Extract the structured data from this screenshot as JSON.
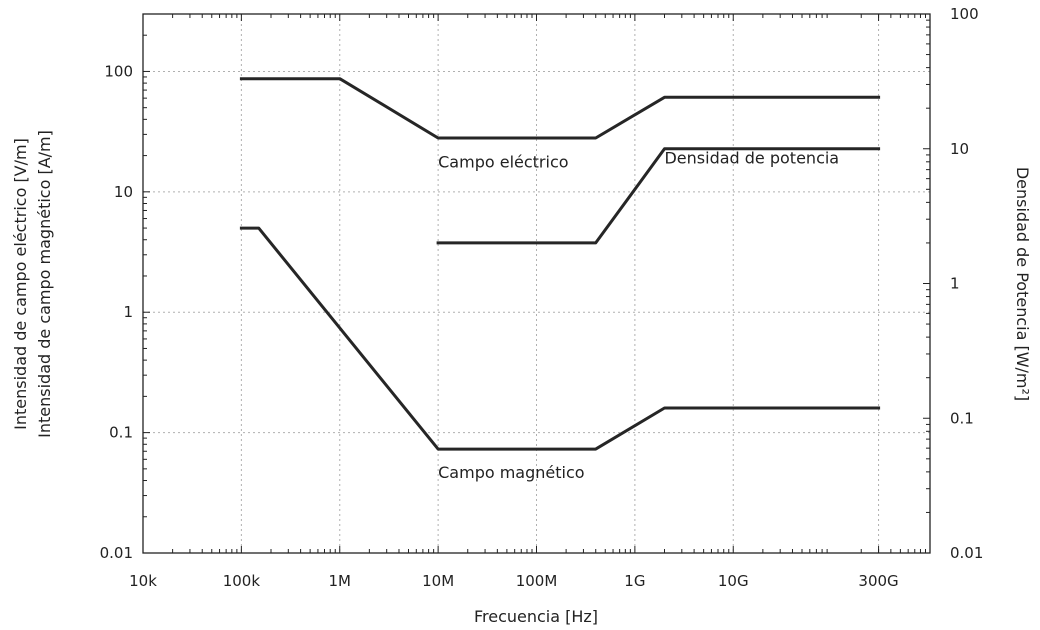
{
  "colors": {
    "line": "#262626",
    "grid": "#b0b0b0",
    "background": "#ffffff"
  },
  "chart_data": {
    "type": "line",
    "x_scale": "log",
    "xlim": [
      10000,
      1000000000000
    ],
    "y_scale": "log",
    "ylim": [
      0.01,
      300
    ],
    "y2_scale": "log",
    "y2lim": [
      0.01,
      100
    ],
    "grid": true,
    "legend": "none",
    "xlabel": "Frecuencia [Hz]",
    "ylabel_lines": [
      "Intensidad de campo eléctrico [V/m]",
      "Intensidad de campo magnético [A/m]"
    ],
    "y2label": "Densidad de Potencia [W/m²]",
    "x_ticks": [
      {
        "value": 10000,
        "label": "10k"
      },
      {
        "value": 100000,
        "label": "100k"
      },
      {
        "value": 1000000,
        "label": "1M"
      },
      {
        "value": 10000000,
        "label": "10M"
      },
      {
        "value": 100000000,
        "label": "100M"
      },
      {
        "value": 1000000000,
        "label": "1G"
      },
      {
        "value": 10000000000,
        "label": "10G"
      },
      {
        "value": 300000000000,
        "label": "300G"
      }
    ],
    "y_ticks": [
      {
        "value": 0.01,
        "label": "0.01"
      },
      {
        "value": 0.1,
        "label": "0.1"
      },
      {
        "value": 1,
        "label": "1"
      },
      {
        "value": 10,
        "label": "10"
      },
      {
        "value": 100,
        "label": "100"
      }
    ],
    "y2_ticks": [
      {
        "value": 0.01,
        "label": "0.01"
      },
      {
        "value": 0.1,
        "label": "0.1"
      },
      {
        "value": 1,
        "label": "1"
      },
      {
        "value": 10,
        "label": "10"
      },
      {
        "value": 100,
        "label": "100"
      }
    ],
    "series": [
      {
        "axis": "left",
        "points": [
          [
            100000,
            87
          ],
          [
            1000000,
            87
          ],
          [
            10000000,
            28
          ],
          [
            400000000,
            28
          ],
          [
            2000000000,
            61
          ],
          [
            300000000000,
            61
          ]
        ]
      },
      {
        "axis": "left",
        "points": [
          [
            100000,
            5
          ],
          [
            150000,
            5
          ],
          [
            10000000,
            0.073
          ],
          [
            400000000,
            0.073
          ],
          [
            2000000000,
            0.16
          ],
          [
            300000000000,
            0.16
          ]
        ]
      },
      {
        "axis": "right",
        "points": [
          [
            10000000,
            2
          ],
          [
            400000000,
            2
          ],
          [
            2000000000,
            10
          ],
          [
            300000000000,
            10
          ]
        ]
      }
    ],
    "annotations": [
      {
        "text": "Campo eléctrico",
        "x": 10000000,
        "y": 16,
        "axis": "left",
        "anchor": "start"
      },
      {
        "text": "Densidad de potencia",
        "x": 2000000000,
        "y": 7.8,
        "axis": "right",
        "anchor": "start"
      },
      {
        "text": "Campo magnético",
        "x": 10000000,
        "y": 0.042,
        "axis": "left",
        "anchor": "start"
      }
    ]
  }
}
